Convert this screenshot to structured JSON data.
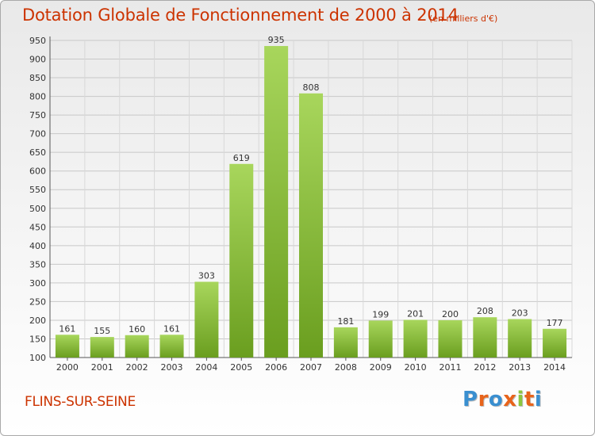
{
  "title": "Dotation Globale de Fonctionnement de 2000 à 2014",
  "unit": "(en milliers d'€)",
  "commune": "FLINS-SUR-SEINE",
  "logo": {
    "text": "Proxiti",
    "colors": [
      "#3a8fd0",
      "#e8641b",
      "#3a8fd0",
      "#e8641b",
      "#8cc63f",
      "#e8641b",
      "#3a8fd0"
    ]
  },
  "colors": {
    "title": "#cc3300",
    "bar_light": "#a8d65c",
    "bar_dark": "#6a9e1f"
  },
  "chart_data": {
    "type": "bar",
    "title": "Dotation Globale de Fonctionnement de 2000 à 2014",
    "subtitle": "(en milliers d'€)",
    "xlabel": "",
    "ylabel": "",
    "categories": [
      "2000",
      "2001",
      "2002",
      "2003",
      "2004",
      "2005",
      "2006",
      "2007",
      "2008",
      "2009",
      "2010",
      "2011",
      "2012",
      "2013",
      "2014"
    ],
    "values": [
      161,
      155,
      160,
      161,
      303,
      619,
      935,
      808,
      181,
      199,
      201,
      200,
      208,
      203,
      177
    ],
    "ylim": [
      100,
      950
    ],
    "yticks": [
      100,
      150,
      200,
      250,
      300,
      350,
      400,
      450,
      500,
      550,
      600,
      650,
      700,
      750,
      800,
      850,
      900,
      950
    ],
    "grid": true,
    "data_labels": true
  }
}
